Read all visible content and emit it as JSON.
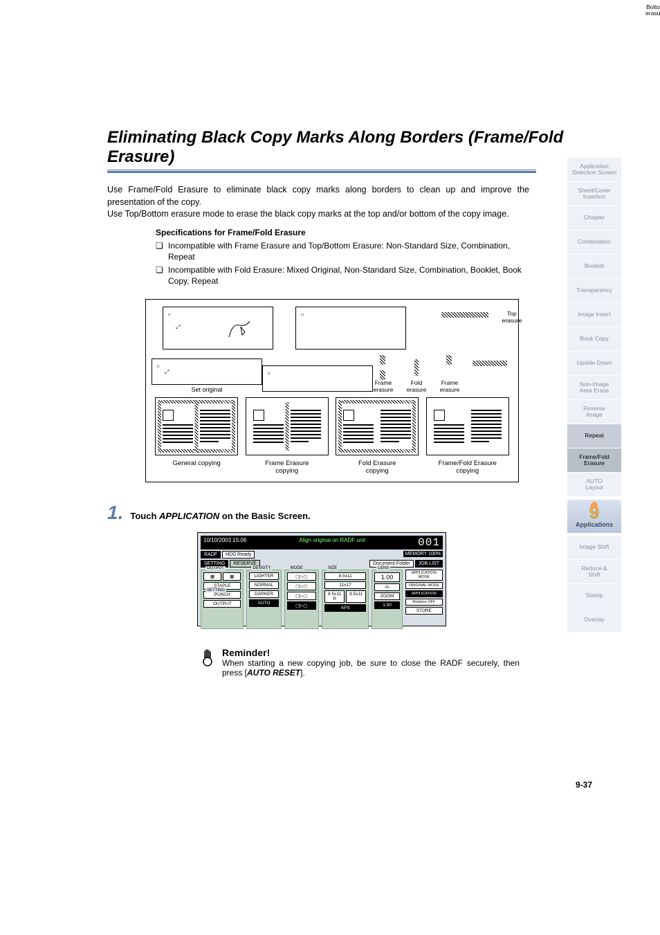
{
  "title": "Eliminating Black Copy Marks Along Borders (Frame/Fold Erasure)",
  "intro1": "Use Frame/Fold Erasure to eliminate black copy marks along borders to clean up and improve the presentation of the copy.",
  "intro2": "Use Top/Bottom erasure mode to erase the black copy marks at the top and/or bottom of the copy image.",
  "spec_heading": "Specifications for Frame/Fold Erasure",
  "spec1": "Incompatible with Frame Erasure and Top/Bottom Erasure: Non-Standard Size, Combination, Repeat",
  "spec2": "Incompatible with Fold Erasure: Mixed Original, Non-Standard Size, Combination, Booklet, Book Copy, Repeat",
  "diagram": {
    "set_original": "Set original",
    "top_erasure": "Top\nerasure",
    "bottom_erasure": "Bottom\nerasure",
    "frame_erasure": "Frame\nerasure",
    "fold_erasure": "Fold\nerasure",
    "general_copying": "General copying",
    "frame_copying": "Frame Erasure\ncopying",
    "fold_copying": "Fold Erasure\ncopying",
    "framefold_copying": "Frame/Fold Erasure\ncopying"
  },
  "step": {
    "num": "1.",
    "prefix": "Touch ",
    "keyword": "APPLICATION",
    "suffix": " on the Basic Screen."
  },
  "screenshot": {
    "datetime": "10/10/2003 15:06",
    "message": "Align original on RADF unit",
    "count": "001",
    "memory": "MEMORY 100%",
    "tabs": {
      "radf": "RADF",
      "hdd": "HDD Ready",
      "setting": "SETTING",
      "reserve": "RESERVE",
      "doc": "Document Folder",
      "joblist": "JOB LIST"
    },
    "output_label": "OUTPUT",
    "setting_label": "SETTING",
    "staple": "STAPLE",
    "punch": "PUNCH",
    "output_btn": "OUTPUT",
    "density_label": "DENSITY",
    "lighter": "LIGHTER",
    "normal": "NORMAL",
    "darker": "DARKER",
    "auto": "AUTO",
    "mode_label": "MODE",
    "size_label": "SIZE",
    "size1": "8.5x11",
    "size2": "11x17",
    "size3": "8.5x11 R",
    "size4": "8.5x11",
    "aps": "APS",
    "lens_label": "LENS",
    "lens_val": "1.00",
    "axa": "-A-",
    "zoom": "ZOOM",
    "one": "1.00",
    "appmode": "APPLICATION MODE",
    "origmode": "ORIGINAL MODE",
    "application": "APPLICATION",
    "rotation": "Rotation OFF",
    "store": "STORE"
  },
  "reminder": {
    "title": "Reminder!",
    "text_pre": "When starting a new copying job, be sure to close the RADF securely, then press [",
    "keyword": "AUTO RESET",
    "text_post": "]."
  },
  "page_num": "9-37",
  "sidebar": {
    "items": [
      {
        "label": "Application\nSelection Screen"
      },
      {
        "label": "Sheet/Cover\nInsertion"
      },
      {
        "label": "Chapter"
      },
      {
        "label": "Combination"
      },
      {
        "label": "Booklet"
      },
      {
        "label": "Transparency"
      },
      {
        "label": "Image Insert"
      },
      {
        "label": "Book Copy"
      },
      {
        "label": "Upside Down"
      },
      {
        "label": "Non-Image\nArea Erase"
      },
      {
        "label": "Reverse\nImage"
      },
      {
        "label": "Repeat"
      },
      {
        "label": "Frame/Fold\nErasure"
      },
      {
        "label": "AUTO\nLayout"
      }
    ],
    "chapter_num": "9",
    "chapter_label": "Applications",
    "items2": [
      {
        "label": "Image Shift"
      },
      {
        "label": "Reduce &\nShift"
      },
      {
        "label": "Stamp"
      },
      {
        "label": "Overlay"
      }
    ]
  }
}
